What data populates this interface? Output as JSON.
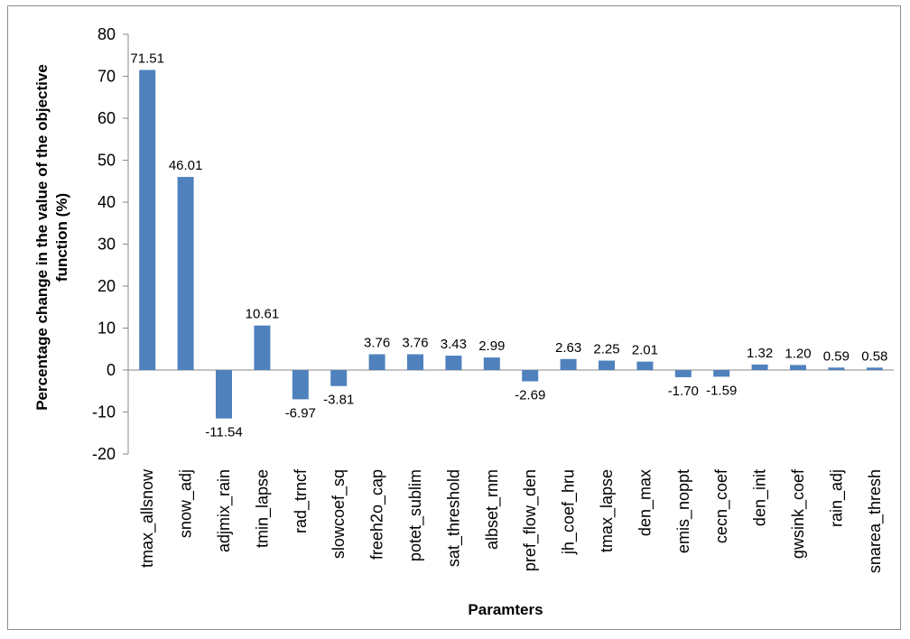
{
  "chart_data": {
    "type": "bar",
    "title": "",
    "xlabel": "Paramters",
    "ylabel": "Percentage change in the value of the objective function (%)",
    "ylabel_lines": [
      "Percentage change in the value of the objective",
      "function (%)"
    ],
    "ylim": [
      -20,
      80
    ],
    "yticks": [
      80,
      70,
      60,
      50,
      40,
      30,
      20,
      10,
      0,
      -10,
      -20
    ],
    "grid": false,
    "legend": "none",
    "bar_color": "#4f81bd",
    "categories": [
      "tmax_allsnow",
      "snow_adj",
      "adjmix_rain",
      "tmin_lapse",
      "rad_trncf",
      "slowcoef_sq",
      "freeh2o_cap",
      "potet_sublim",
      "sat_threshold",
      "albset_rnm",
      "pref_flow_den",
      "jh_coef_hru",
      "tmax_lapse",
      "den_max",
      "emis_noppt",
      "cecn_coef",
      "den_init",
      "gwsink_coef",
      "rain_adj",
      "snarea_thresh"
    ],
    "values": [
      71.51,
      46.01,
      -11.54,
      10.61,
      -6.97,
      -3.81,
      3.76,
      3.76,
      3.43,
      2.99,
      -2.69,
      2.63,
      2.25,
      2.01,
      -1.7,
      -1.59,
      1.32,
      1.2,
      0.59,
      0.58
    ],
    "data_labels": [
      "71.51",
      "46.01",
      "-11.54",
      "10.61",
      "-6.97",
      "-3.81",
      "3.76",
      "3.76",
      "3.43",
      "2.99",
      "-2.69",
      "2.63",
      "2.25",
      "2.01",
      "-1.70",
      "-1.59",
      "1.32",
      "1.20",
      "0.59",
      "0.58"
    ]
  }
}
